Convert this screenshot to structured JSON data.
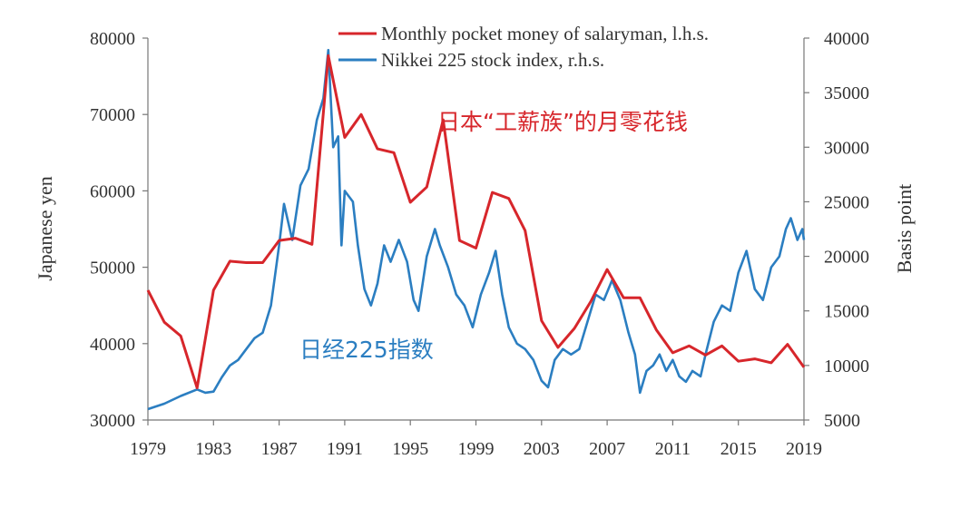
{
  "chart_data": {
    "type": "line",
    "x_range": [
      1979,
      2019
    ],
    "x_ticks": [
      "1979",
      "1983",
      "1987",
      "1991",
      "1995",
      "1999",
      "2003",
      "2007",
      "2011",
      "2015",
      "2019"
    ],
    "y_left": {
      "label": "Japanese yen",
      "range": [
        30000,
        80000
      ],
      "ticks": [
        "30000",
        "40000",
        "50000",
        "60000",
        "70000",
        "80000"
      ]
    },
    "y_right": {
      "label": "Basis point",
      "range": [
        5000,
        40000
      ],
      "ticks": [
        "5000",
        "10000",
        "15000",
        "20000",
        "25000",
        "30000",
        "35000",
        "40000"
      ]
    },
    "legend_position": "top-right",
    "grid": false,
    "annotations": {
      "red": "日本“工薪族”的月零花钱",
      "blue": "日经225指数"
    },
    "series": [
      {
        "name": "Monthly pocket money of salaryman, l.h.s.",
        "axis": "left",
        "color": "#d7262b",
        "points": [
          [
            1979,
            47000
          ],
          [
            1980,
            42800
          ],
          [
            1981,
            41000
          ],
          [
            1982,
            34200
          ],
          [
            1983,
            47000
          ],
          [
            1984,
            50800
          ],
          [
            1985,
            50600
          ],
          [
            1986,
            50600
          ],
          [
            1987,
            53500
          ],
          [
            1988,
            53800
          ],
          [
            1989,
            53000
          ],
          [
            1990,
            77700
          ],
          [
            1991,
            67000
          ],
          [
            1992,
            70000
          ],
          [
            1993,
            65500
          ],
          [
            1994,
            65000
          ],
          [
            1995,
            58500
          ],
          [
            1996,
            60500
          ],
          [
            1997,
            69300
          ],
          [
            1998,
            53500
          ],
          [
            1999,
            52500
          ],
          [
            2000,
            59800
          ],
          [
            2001,
            59000
          ],
          [
            2002,
            54800
          ],
          [
            2003,
            43000
          ],
          [
            2004,
            39500
          ],
          [
            2005,
            42000
          ],
          [
            2006,
            45500
          ],
          [
            2007,
            49700
          ],
          [
            2008,
            46000
          ],
          [
            2009,
            46000
          ],
          [
            2010,
            41800
          ],
          [
            2011,
            38800
          ],
          [
            2012,
            39700
          ],
          [
            2013,
            38500
          ],
          [
            2014,
            39700
          ],
          [
            2015,
            37700
          ],
          [
            2016,
            38000
          ],
          [
            2017,
            37500
          ],
          [
            2018,
            39900
          ],
          [
            2019,
            36900
          ]
        ]
      },
      {
        "name": "Nikkei 225 stock index, r.h.s.",
        "axis": "right",
        "color": "#2b7ec1",
        "points": [
          [
            1979.0,
            6000
          ],
          [
            1980.0,
            6500
          ],
          [
            1981.0,
            7200
          ],
          [
            1982.0,
            7800
          ],
          [
            1982.5,
            7500
          ],
          [
            1983.0,
            7600
          ],
          [
            1983.5,
            8900
          ],
          [
            1984.0,
            10000
          ],
          [
            1984.5,
            10500
          ],
          [
            1985.0,
            11500
          ],
          [
            1985.5,
            12500
          ],
          [
            1986.0,
            13000
          ],
          [
            1986.5,
            15500
          ],
          [
            1987.0,
            21000
          ],
          [
            1987.3,
            24800
          ],
          [
            1987.8,
            21500
          ],
          [
            1988.3,
            26500
          ],
          [
            1988.8,
            28000
          ],
          [
            1989.3,
            32500
          ],
          [
            1989.7,
            34500
          ],
          [
            1990.0,
            38900
          ],
          [
            1990.3,
            30000
          ],
          [
            1990.6,
            31000
          ],
          [
            1990.8,
            21000
          ],
          [
            1991.0,
            26000
          ],
          [
            1991.5,
            25000
          ],
          [
            1991.8,
            21000
          ],
          [
            1992.2,
            17000
          ],
          [
            1992.6,
            15500
          ],
          [
            1993.0,
            17500
          ],
          [
            1993.4,
            21000
          ],
          [
            1993.8,
            19500
          ],
          [
            1994.3,
            21500
          ],
          [
            1994.8,
            19500
          ],
          [
            1995.2,
            16000
          ],
          [
            1995.5,
            15000
          ],
          [
            1996.0,
            20000
          ],
          [
            1996.5,
            22500
          ],
          [
            1996.8,
            21000
          ],
          [
            1997.3,
            19000
          ],
          [
            1997.8,
            16500
          ],
          [
            1998.3,
            15500
          ],
          [
            1998.8,
            13500
          ],
          [
            1999.3,
            16500
          ],
          [
            1999.8,
            18500
          ],
          [
            2000.2,
            20500
          ],
          [
            2000.6,
            16500
          ],
          [
            2001.0,
            13500
          ],
          [
            2001.5,
            12000
          ],
          [
            2002.0,
            11500
          ],
          [
            2002.5,
            10500
          ],
          [
            2003.0,
            8600
          ],
          [
            2003.4,
            8000
          ],
          [
            2003.8,
            10500
          ],
          [
            2004.3,
            11500
          ],
          [
            2004.8,
            11000
          ],
          [
            2005.3,
            11500
          ],
          [
            2005.8,
            14000
          ],
          [
            2006.3,
            16500
          ],
          [
            2006.8,
            16000
          ],
          [
            2007.3,
            17800
          ],
          [
            2007.8,
            16000
          ],
          [
            2008.3,
            13000
          ],
          [
            2008.7,
            11000
          ],
          [
            2009.0,
            7500
          ],
          [
            2009.4,
            9500
          ],
          [
            2009.8,
            10000
          ],
          [
            2010.2,
            11000
          ],
          [
            2010.6,
            9500
          ],
          [
            2011.0,
            10500
          ],
          [
            2011.4,
            9000
          ],
          [
            2011.8,
            8500
          ],
          [
            2012.2,
            9500
          ],
          [
            2012.7,
            9000
          ],
          [
            2013.0,
            11000
          ],
          [
            2013.5,
            14000
          ],
          [
            2014.0,
            15500
          ],
          [
            2014.5,
            15000
          ],
          [
            2015.0,
            18500
          ],
          [
            2015.5,
            20500
          ],
          [
            2016.0,
            17000
          ],
          [
            2016.5,
            16000
          ],
          [
            2017.0,
            19000
          ],
          [
            2017.5,
            20000
          ],
          [
            2017.9,
            22500
          ],
          [
            2018.2,
            23500
          ],
          [
            2018.6,
            21500
          ],
          [
            2018.9,
            22500
          ],
          [
            2019.0,
            21500
          ]
        ]
      }
    ]
  }
}
